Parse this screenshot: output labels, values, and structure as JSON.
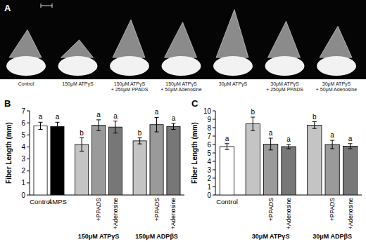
{
  "photo_panel": {
    "label": "A",
    "captions": [
      [
        "Control"
      ],
      [
        "150μM ATPγS"
      ],
      [
        "150μM ATPγS",
        "+ 250μM PPADS"
      ],
      [
        "150μM ATPγS",
        "+ 50μM Adenosine"
      ],
      [
        "30μM ATPγS"
      ],
      [
        "30μM ATPγS",
        "+ 250μM PPADS"
      ],
      [
        "30μM ATPγS",
        "+ 50μM Adenosine"
      ]
    ]
  },
  "chart_data": [
    {
      "type": "bar",
      "title": "B",
      "y_label": "Fiber Length (mm)",
      "categories": [
        "Control",
        "AMPS",
        null,
        "+PPADS",
        "+Adenosine",
        null,
        "+PPADS",
        "+Adenosine"
      ],
      "group_labels": [
        "150μM ATPγS",
        "150μM ADPβS"
      ],
      "values": [
        5.75,
        5.7,
        4.2,
        5.8,
        5.65,
        4.5,
        5.85,
        5.7
      ],
      "errors": [
        0.3,
        0.35,
        0.55,
        0.45,
        0.5,
        0.25,
        0.6,
        0.25
      ],
      "significance_labels": [
        "a",
        "a",
        "b",
        "a",
        "a",
        "b",
        "a",
        "a"
      ],
      "colors": [
        "#ffffff",
        "#000000",
        "#c4c4c4",
        "#9a9a9a",
        "#777777",
        "#c4c4c4",
        "#9a9a9a",
        "#777777"
      ],
      "ylim": [
        0,
        7
      ],
      "yticks": [
        0,
        1,
        2,
        3,
        4,
        5,
        6,
        7
      ],
      "grid": false
    },
    {
      "type": "bar",
      "title": "C",
      "y_label": "Fiber Length (mm)",
      "categories": [
        "Control",
        null,
        "+PPADS",
        "+Adenosine",
        null,
        "+PPADS",
        "+Adenosine"
      ],
      "group_labels": [
        "30μM ATPγS",
        "30μM ADPβS"
      ],
      "values": [
        5.75,
        8.45,
        6.05,
        5.75,
        8.3,
        6.0,
        5.8
      ],
      "errors": [
        0.35,
        0.8,
        0.7,
        0.25,
        0.4,
        0.5,
        0.3
      ],
      "significance_labels": [
        "a",
        "b",
        "a",
        "a",
        "b",
        "a",
        "a"
      ],
      "colors": [
        "#ffffff",
        "#c4c4c4",
        "#9a9a9a",
        "#777777",
        "#c4c4c4",
        "#9a9a9a",
        "#777777"
      ],
      "ylim": [
        0,
        10
      ],
      "yticks": [
        0,
        1,
        2,
        3,
        4,
        5,
        6,
        7,
        8,
        9,
        10
      ],
      "grid": false
    }
  ]
}
